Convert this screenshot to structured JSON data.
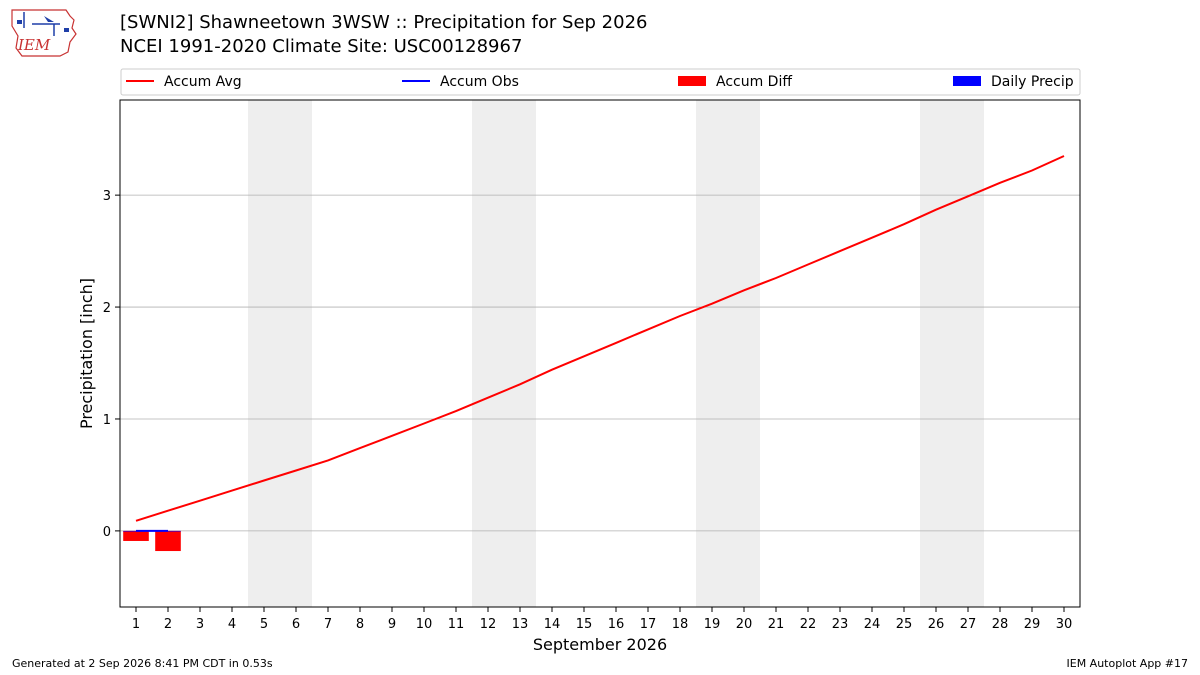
{
  "header": {
    "logo_text": "IEM",
    "title_line1": "[SWNI2] Shawneetown 3WSW :: Precipitation for Sep 2026",
    "title_line2": "NCEI 1991-2020 Climate Site: USC00128967"
  },
  "footer": {
    "left": "Generated at 2 Sep 2026 8:41 PM CDT in 0.53s",
    "right": "IEM Autoplot App #17"
  },
  "colors": {
    "accum_avg": "#ff0000",
    "accum_obs": "#0000ff",
    "accum_diff": "#ff0000",
    "daily_precip": "#0000ff",
    "weekend_shade": "#eeeeee",
    "grid": "#b0b0b0"
  },
  "chart_data": {
    "type": "line",
    "xlabel": "September 2026",
    "ylabel": "Precipitation [inch]",
    "x": [
      1,
      2,
      3,
      4,
      5,
      6,
      7,
      8,
      9,
      10,
      11,
      12,
      13,
      14,
      15,
      16,
      17,
      18,
      19,
      20,
      21,
      22,
      23,
      24,
      25,
      26,
      27,
      28,
      29,
      30
    ],
    "xlim": [
      0.5,
      30.5
    ],
    "ylim": [
      -0.68,
      3.85
    ],
    "yticks": [
      0,
      1,
      2,
      3
    ],
    "grid": "horizontal",
    "legend": "top",
    "shaded_days": [
      5,
      6,
      12,
      13,
      19,
      20,
      26,
      27
    ],
    "series": [
      {
        "name": "Accum Avg",
        "kind": "line",
        "x": [
          1,
          2,
          3,
          4,
          5,
          6,
          7,
          8,
          9,
          10,
          11,
          12,
          13,
          14,
          15,
          16,
          17,
          18,
          19,
          20,
          21,
          22,
          23,
          24,
          25,
          26,
          27,
          28,
          29,
          30
        ],
        "values": [
          0.09,
          0.18,
          0.27,
          0.36,
          0.45,
          0.54,
          0.63,
          0.74,
          0.85,
          0.96,
          1.07,
          1.19,
          1.31,
          1.44,
          1.56,
          1.68,
          1.8,
          1.92,
          2.03,
          2.15,
          2.26,
          2.38,
          2.5,
          2.62,
          2.74,
          2.87,
          2.99,
          3.11,
          3.22,
          3.35
        ]
      },
      {
        "name": "Accum Obs",
        "kind": "line",
        "x": [
          1,
          2
        ],
        "values": [
          0.0,
          0.0
        ]
      },
      {
        "name": "Accum Diff",
        "kind": "bar",
        "x": [
          1,
          2
        ],
        "values": [
          -0.09,
          -0.18
        ]
      },
      {
        "name": "Daily Precip",
        "kind": "bar",
        "x": [
          1,
          2
        ],
        "values": [
          0.0,
          0.0
        ]
      }
    ]
  }
}
